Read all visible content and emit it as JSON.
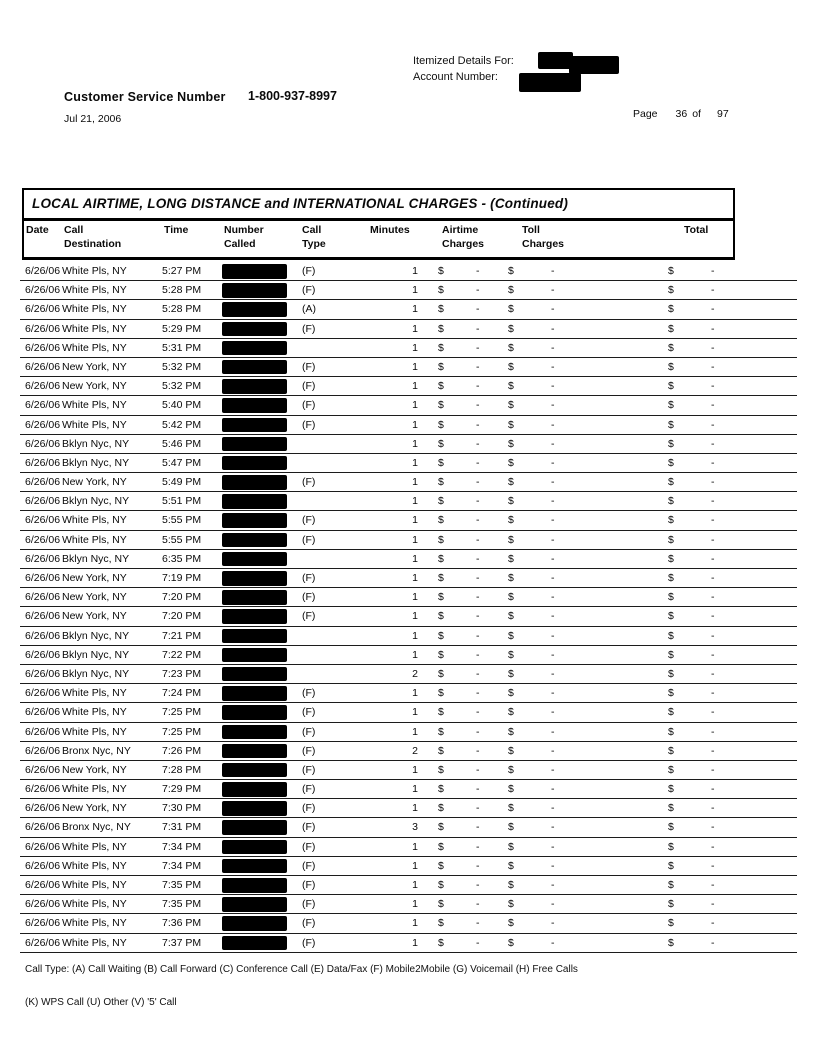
{
  "page": {
    "itemized_details_label": "Itemized Details For:",
    "account_number_label": "Account Number:",
    "customer_service_label": "Customer Service Number",
    "customer_service_number": "1-800-937-8997",
    "statement_date": "Jul 21, 2006",
    "page_label": "Page",
    "page_current": "36",
    "page_of": "of",
    "page_total": "97"
  },
  "table": {
    "title": "LOCAL AIRTIME, LONG DISTANCE and INTERNATIONAL CHARGES - (Continued)",
    "columns": {
      "date": "Date",
      "destination_l1": "Call",
      "destination_l2": "Destination",
      "time": "Time",
      "number_l1": "Number",
      "number_l2": "Called",
      "type_l1": "Call",
      "type_l2": "Type",
      "minutes": "Minutes",
      "airtime_l1": "Airtime",
      "airtime_l2": "Charges",
      "toll_l1": "Toll",
      "toll_l2": "Charges",
      "total": "Total"
    },
    "currency_symbol": "$",
    "no_charge": "-",
    "rows": [
      {
        "date": "6/26/06",
        "destination": "White Pls, NY",
        "time": "5:27 PM",
        "call_type": "(F)",
        "minutes": "1"
      },
      {
        "date": "6/26/06",
        "destination": "White Pls, NY",
        "time": "5:28 PM",
        "call_type": "(F)",
        "minutes": "1"
      },
      {
        "date": "6/26/06",
        "destination": "White Pls, NY",
        "time": "5:28 PM",
        "call_type": "(A)",
        "minutes": "1"
      },
      {
        "date": "6/26/06",
        "destination": "White Pls, NY",
        "time": "5:29 PM",
        "call_type": "(F)",
        "minutes": "1"
      },
      {
        "date": "6/26/06",
        "destination": "White Pls, NY",
        "time": "5:31 PM",
        "call_type": "",
        "minutes": "1"
      },
      {
        "date": "6/26/06",
        "destination": "New York, NY",
        "time": "5:32 PM",
        "call_type": "(F)",
        "minutes": "1"
      },
      {
        "date": "6/26/06",
        "destination": "New York, NY",
        "time": "5:32 PM",
        "call_type": "(F)",
        "minutes": "1"
      },
      {
        "date": "6/26/06",
        "destination": "White Pls, NY",
        "time": "5:40 PM",
        "call_type": "(F)",
        "minutes": "1"
      },
      {
        "date": "6/26/06",
        "destination": "White Pls, NY",
        "time": "5:42 PM",
        "call_type": "(F)",
        "minutes": "1"
      },
      {
        "date": "6/26/06",
        "destination": "Bklyn Nyc, NY",
        "time": "5:46 PM",
        "call_type": "",
        "minutes": "1"
      },
      {
        "date": "6/26/06",
        "destination": "Bklyn Nyc, NY",
        "time": "5:47 PM",
        "call_type": "",
        "minutes": "1"
      },
      {
        "date": "6/26/06",
        "destination": "New York, NY",
        "time": "5:49 PM",
        "call_type": "(F)",
        "minutes": "1"
      },
      {
        "date": "6/26/06",
        "destination": "Bklyn Nyc, NY",
        "time": "5:51 PM",
        "call_type": "",
        "minutes": "1"
      },
      {
        "date": "6/26/06",
        "destination": "White Pls, NY",
        "time": "5:55 PM",
        "call_type": "(F)",
        "minutes": "1"
      },
      {
        "date": "6/26/06",
        "destination": "White Pls, NY",
        "time": "5:55 PM",
        "call_type": "(F)",
        "minutes": "1"
      },
      {
        "date": "6/26/06",
        "destination": "Bklyn Nyc, NY",
        "time": "6:35 PM",
        "call_type": "",
        "minutes": "1"
      },
      {
        "date": "6/26/06",
        "destination": "New York, NY",
        "time": "7:19 PM",
        "call_type": "(F)",
        "minutes": "1"
      },
      {
        "date": "6/26/06",
        "destination": "New York, NY",
        "time": "7:20 PM",
        "call_type": "(F)",
        "minutes": "1"
      },
      {
        "date": "6/26/06",
        "destination": "New York, NY",
        "time": "7:20 PM",
        "call_type": "(F)",
        "minutes": "1"
      },
      {
        "date": "6/26/06",
        "destination": "Bklyn Nyc, NY",
        "time": "7:21 PM",
        "call_type": "",
        "minutes": "1"
      },
      {
        "date": "6/26/06",
        "destination": "Bklyn Nyc, NY",
        "time": "7:22 PM",
        "call_type": "",
        "minutes": "1"
      },
      {
        "date": "6/26/06",
        "destination": "Bklyn Nyc, NY",
        "time": "7:23 PM",
        "call_type": "",
        "minutes": "2"
      },
      {
        "date": "6/26/06",
        "destination": "White Pls, NY",
        "time": "7:24 PM",
        "call_type": "(F)",
        "minutes": "1"
      },
      {
        "date": "6/26/06",
        "destination": "White Pls, NY",
        "time": "7:25 PM",
        "call_type": "(F)",
        "minutes": "1"
      },
      {
        "date": "6/26/06",
        "destination": "White Pls, NY",
        "time": "7:25 PM",
        "call_type": "(F)",
        "minutes": "1"
      },
      {
        "date": "6/26/06",
        "destination": "Bronx Nyc, NY",
        "time": "7:26 PM",
        "call_type": "(F)",
        "minutes": "2"
      },
      {
        "date": "6/26/06",
        "destination": "New York, NY",
        "time": "7:28 PM",
        "call_type": "(F)",
        "minutes": "1"
      },
      {
        "date": "6/26/06",
        "destination": "White Pls, NY",
        "time": "7:29 PM",
        "call_type": "(F)",
        "minutes": "1"
      },
      {
        "date": "6/26/06",
        "destination": "New York, NY",
        "time": "7:30 PM",
        "call_type": "(F)",
        "minutes": "1"
      },
      {
        "date": "6/26/06",
        "destination": "Bronx Nyc, NY",
        "time": "7:31 PM",
        "call_type": "(F)",
        "minutes": "3"
      },
      {
        "date": "6/26/06",
        "destination": "White Pls, NY",
        "time": "7:34 PM",
        "call_type": "(F)",
        "minutes": "1"
      },
      {
        "date": "6/26/06",
        "destination": "White Pls, NY",
        "time": "7:34 PM",
        "call_type": "(F)",
        "minutes": "1"
      },
      {
        "date": "6/26/06",
        "destination": "White Pls, NY",
        "time": "7:35 PM",
        "call_type": "(F)",
        "minutes": "1"
      },
      {
        "date": "6/26/06",
        "destination": "White Pls, NY",
        "time": "7:35 PM",
        "call_type": "(F)",
        "minutes": "1"
      },
      {
        "date": "6/26/06",
        "destination": "White Pls, NY",
        "time": "7:36 PM",
        "call_type": "(F)",
        "minutes": "1"
      },
      {
        "date": "6/26/06",
        "destination": "White Pls, NY",
        "time": "7:37 PM",
        "call_type": "(F)",
        "minutes": "1"
      }
    ]
  },
  "footer": {
    "legend_line1": "Call Type: (A) Call Waiting (B) Call Forward (C) Conference Call (E) Data/Fax (F) Mobile2Mobile (G) Voicemail (H) Free Calls",
    "legend_line2": "(K) WPS Call (U) Other (V) '5' Call"
  }
}
